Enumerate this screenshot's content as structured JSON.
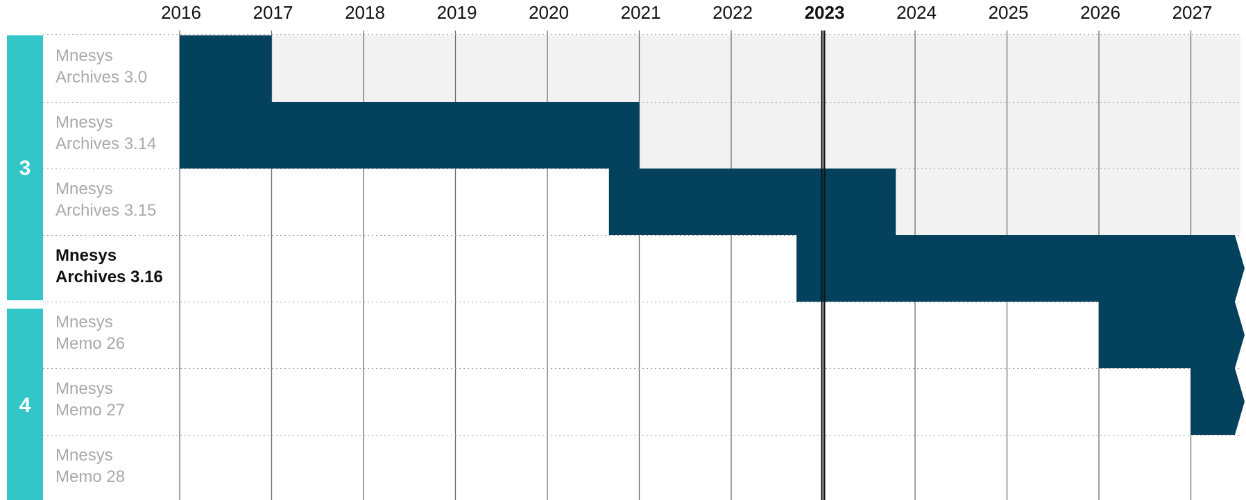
{
  "chart_data": {
    "type": "gantt",
    "years": [
      "2016",
      "2017",
      "2018",
      "2019",
      "2020",
      "2021",
      "2022",
      "2023",
      "2024",
      "2025",
      "2026",
      "2027"
    ],
    "current_year": "2023",
    "groups": [
      {
        "label": "3",
        "rows": [
          0,
          3
        ]
      },
      {
        "label": "4",
        "rows": [
          4,
          6
        ]
      }
    ],
    "rows": [
      {
        "label": [
          "Mnesys",
          "Archives 3.0"
        ],
        "start": 2016.0,
        "end": 2017.0,
        "band_start": 2016.0,
        "band_end": 2028.0,
        "ongoing": false,
        "current": false
      },
      {
        "label": [
          "Mnesys",
          "Archives 3.14"
        ],
        "start": 2016.0,
        "end": 2021.0,
        "band_start": 2016.0,
        "band_end": 2028.0,
        "ongoing": false,
        "current": false
      },
      {
        "label": [
          "Mnesys",
          "Archives 3.15"
        ],
        "start": 2020.67,
        "end": 2023.79,
        "band_start": 2023.79,
        "band_end": 2028.0,
        "ongoing": false,
        "current": false
      },
      {
        "label": [
          "Mnesys",
          "Archives 3.16"
        ],
        "start": 2022.71,
        "end": 2027.4,
        "band_start": null,
        "band_end": null,
        "ongoing": true,
        "current": true
      },
      {
        "label": [
          "Mnesys",
          "Memo 26"
        ],
        "start": 2026.0,
        "end": 2027.4,
        "band_start": null,
        "band_end": null,
        "ongoing": true,
        "current": false
      },
      {
        "label": [
          "Mnesys",
          "Memo 27"
        ],
        "start": 2027.0,
        "end": 2027.4,
        "band_start": null,
        "band_end": null,
        "ongoing": true,
        "current": false
      },
      {
        "label": [
          "Mnesys",
          "Memo 28"
        ],
        "start": null,
        "end": null,
        "band_start": null,
        "band_end": null,
        "ongoing": false,
        "current": false
      }
    ],
    "colors": {
      "bar": "#03415c",
      "group": "#33c6c9",
      "band": "#f2f2f2",
      "gridline": "#6d6d6d",
      "label": "#a9a9a9",
      "label_current": "#111111"
    }
  }
}
